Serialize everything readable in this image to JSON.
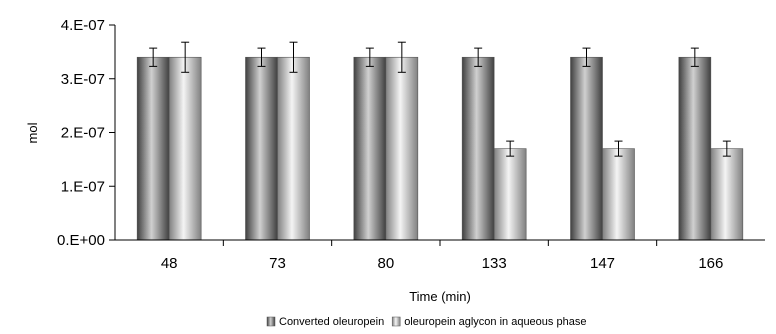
{
  "chart_data": {
    "type": "bar",
    "title": "",
    "xlabel": "Time (min)",
    "ylabel": "mol",
    "categories": [
      "48",
      "73",
      "80",
      "133",
      "147",
      "166"
    ],
    "series": [
      {
        "name": "Converted oleuropein",
        "values": [
          3.4e-07,
          3.4e-07,
          3.4e-07,
          3.4e-07,
          3.4e-07,
          3.4e-07
        ],
        "error": [
          1.7e-08,
          1.7e-08,
          1.7e-08,
          1.7e-08,
          1.7e-08,
          1.7e-08
        ],
        "color_dark": "#404040",
        "color_light": "#d0d0d0"
      },
      {
        "name": "oleuropein aglycon in aqueous phase",
        "values": [
          3.4e-07,
          3.4e-07,
          3.4e-07,
          1.7e-07,
          1.7e-07,
          1.7e-07
        ],
        "error": [
          2.8e-08,
          2.8e-08,
          2.8e-08,
          1.4e-08,
          1.4e-08,
          1.4e-08
        ],
        "color_dark": "#808080",
        "color_light": "#f4f4f4"
      }
    ],
    "ylim": [
      0,
      4e-07
    ],
    "yticks": [
      0,
      1e-07,
      2e-07,
      3e-07,
      4e-07
    ],
    "ytick_labels": [
      "0.E+00",
      "1.E-07",
      "2.E-07",
      "3.E-07",
      "4.E-07"
    ],
    "grid": false,
    "legend_position": "bottom"
  }
}
